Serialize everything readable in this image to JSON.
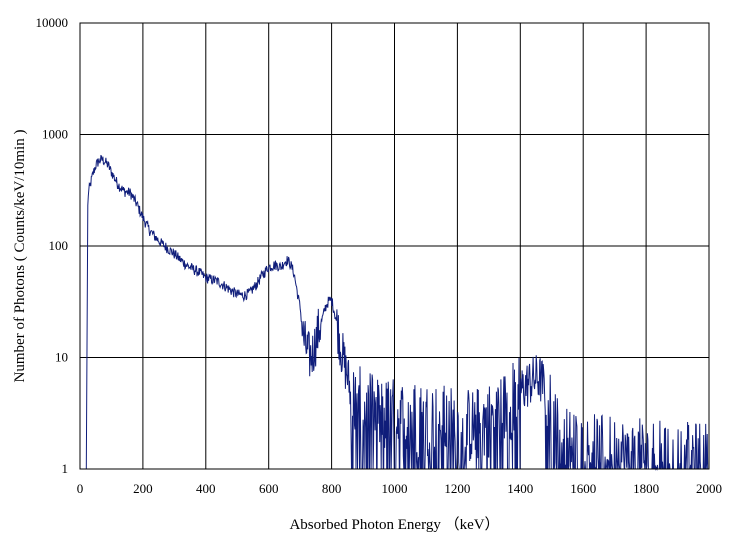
{
  "chart_data": {
    "type": "line",
    "title": "",
    "xlabel": "Absorbed Photon Energy （keV）",
    "ylabel": "Number  of Photons ( Counts/keV/10min  )",
    "xlim": [
      0,
      2000
    ],
    "ylim": [
      1,
      10000
    ],
    "y_scale": "log",
    "grid": true,
    "legend": "none",
    "x_ticks": [
      "0",
      "200",
      "400",
      "600",
      "800",
      "1000",
      "1200",
      "1400",
      "1600",
      "1800",
      "2000"
    ],
    "y_ticks": [
      "1",
      "10",
      "100",
      "1000",
      "10000"
    ],
    "color": "#0f1d7a",
    "series": [
      {
        "x": [
          20,
          25,
          30,
          40,
          50,
          60,
          70,
          80,
          90,
          100,
          120,
          140,
          160,
          180,
          200,
          220,
          240,
          260,
          280,
          300,
          320,
          340,
          360,
          380,
          400,
          420,
          440,
          460,
          480,
          500,
          520,
          540,
          560,
          580,
          600,
          620,
          640,
          650,
          660,
          670,
          680,
          690,
          700,
          710,
          720,
          730,
          740,
          750,
          760,
          770,
          780,
          790,
          800,
          810,
          820,
          830,
          840,
          850,
          860,
          870,
          880,
          900,
          950,
          1000,
          1050,
          1100,
          1150,
          1200,
          1250,
          1300,
          1350,
          1400,
          1430,
          1450,
          1460,
          1470,
          1480,
          1500,
          1520,
          1550,
          1600,
          1650,
          1700,
          1750,
          1800,
          1850,
          1900,
          1950,
          2000
        ],
        "y": [
          1,
          280,
          330,
          430,
          530,
          580,
          600,
          570,
          530,
          460,
          360,
          310,
          300,
          240,
          180,
          140,
          120,
          105,
          95,
          85,
          75,
          67,
          62,
          58,
          52,
          50,
          48,
          44,
          40,
          37,
          36,
          38,
          45,
          55,
          65,
          68,
          65,
          72,
          75,
          68,
          58,
          40,
          28,
          15,
          12,
          10,
          11,
          14,
          18,
          22,
          28,
          32,
          33,
          25,
          18,
          12,
          9,
          7,
          5,
          4.5,
          4,
          3.5,
          3,
          3,
          2.8,
          2.8,
          2.6,
          2.5,
          2.4,
          2.8,
          3.5,
          5,
          6,
          6.5,
          6.5,
          6,
          5,
          3,
          2,
          1.6,
          1.5,
          1.4,
          1.4,
          1.3,
          1.3,
          1.3,
          1.2,
          1.2,
          1.2
        ]
      }
    ]
  }
}
